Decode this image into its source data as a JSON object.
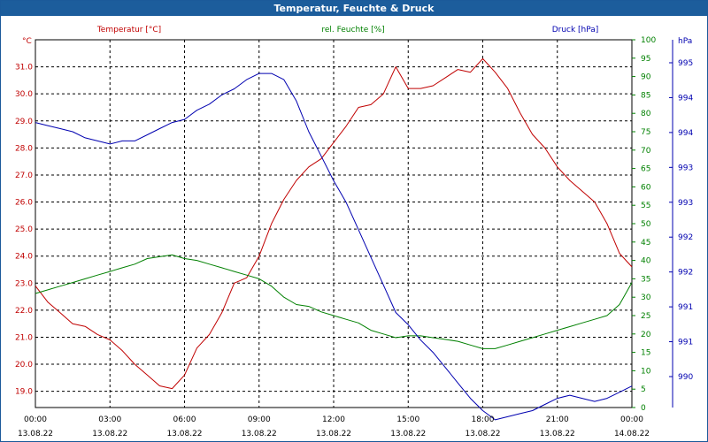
{
  "window_title": "Temperatur, Feuchte & Druck",
  "colors": {
    "titlebar": "#1c5d9c",
    "temperature": "#c00000",
    "humidity": "#008000",
    "pressure": "#0000b0",
    "grid": "#000000"
  },
  "chart_data": {
    "type": "line",
    "title": "Temperatur, Feuchte & Druck",
    "x_ticks": [
      {
        "time": "00:00",
        "date": "13.08.22"
      },
      {
        "time": "03:00",
        "date": "13.08.22"
      },
      {
        "time": "06:00",
        "date": "13.08.22"
      },
      {
        "time": "09:00",
        "date": "13.08.22"
      },
      {
        "time": "12:00",
        "date": "13.08.22"
      },
      {
        "time": "15:00",
        "date": "13.08.22"
      },
      {
        "time": "18:00",
        "date": "13.08.22"
      },
      {
        "time": "21:00",
        "date": "13.08.22"
      },
      {
        "time": "00:00",
        "date": "14.08.22"
      }
    ],
    "x_range_hours": [
      0,
      24
    ],
    "axes": {
      "temperature": {
        "label": "Temperatur [°C]",
        "unit": "°C",
        "range": [
          18.4,
          32.0
        ],
        "ticks": [
          "31.0",
          "30.0",
          "29.0",
          "28.0",
          "27.0",
          "26.0",
          "25.0",
          "24.0",
          "23.0",
          "22.0",
          "21.0",
          "20.0",
          "19.0"
        ]
      },
      "humidity": {
        "label": "rel. Feuchte [%]",
        "unit": "%",
        "range": [
          0,
          100
        ],
        "ticks": [
          "100",
          "95",
          "90",
          "85",
          "80",
          "75",
          "70",
          "65",
          "60",
          "55",
          "50",
          "45",
          "40",
          "35",
          "30",
          "25",
          "20",
          "15",
          "10",
          "5",
          "0"
        ]
      },
      "pressure": {
        "label": "Druck [hPa]",
        "unit": "hPa",
        "range": [
          989.5,
          995.5
        ],
        "ticks": [
          "995",
          "994",
          "994",
          "993",
          "993",
          "992",
          "992",
          "991",
          "991",
          "990"
        ]
      }
    },
    "series": [
      {
        "name": "Temperatur",
        "axis": "temperature",
        "x": [
          0,
          0.5,
          1,
          1.5,
          2,
          2.5,
          3,
          3.5,
          4,
          4.5,
          5,
          5.5,
          6,
          6.5,
          7,
          7.5,
          8,
          8.5,
          9,
          9.5,
          10,
          10.5,
          11,
          11.5,
          12,
          12.5,
          13,
          13.5,
          14,
          14.5,
          15,
          15.5,
          16,
          16.5,
          17,
          17.5,
          18,
          18.5,
          19,
          19.5,
          20,
          20.5,
          21,
          21.5,
          22,
          22.5,
          23,
          23.5,
          24
        ],
        "values": [
          22.9,
          22.3,
          21.9,
          21.5,
          21.4,
          21.1,
          20.9,
          20.5,
          20.0,
          19.6,
          19.2,
          19.1,
          19.6,
          20.6,
          21.1,
          21.9,
          23.0,
          23.2,
          24.0,
          25.2,
          26.1,
          26.8,
          27.3,
          27.6,
          28.2,
          28.8,
          29.5,
          29.6,
          30.0,
          31.0,
          30.2,
          30.2,
          30.3,
          30.6,
          30.9,
          30.8,
          31.3,
          30.8,
          30.2,
          29.3,
          28.5,
          28.0,
          27.3,
          26.8,
          26.4,
          26.0,
          25.2,
          24.1,
          23.6
        ]
      },
      {
        "name": "rel. Feuchte",
        "axis": "humidity",
        "x": [
          0,
          0.5,
          1,
          1.5,
          2,
          2.5,
          3,
          3.5,
          4,
          4.5,
          5,
          5.5,
          6,
          6.5,
          7,
          7.5,
          8,
          8.5,
          9,
          9.5,
          10,
          10.5,
          11,
          11.5,
          12,
          12.5,
          13,
          13.5,
          14,
          14.5,
          15,
          15.5,
          16,
          16.5,
          17,
          17.5,
          18,
          18.5,
          19,
          19.5,
          20,
          20.5,
          21,
          21.5,
          22,
          22.5,
          23,
          23.5,
          24
        ],
        "values": [
          31,
          32,
          33,
          34,
          35,
          36,
          37,
          38,
          39,
          40.5,
          41,
          41.5,
          40.5,
          40,
          39,
          38,
          37,
          36,
          35,
          33,
          30,
          28,
          27.5,
          26,
          25,
          24,
          23,
          21,
          20,
          19,
          19.5,
          19.5,
          19,
          18.5,
          18,
          17,
          16,
          16,
          17,
          18,
          19,
          20,
          21,
          22,
          23,
          24,
          25,
          28,
          34
        ]
      },
      {
        "name": "Druck",
        "axis": "pressure",
        "x": [
          0,
          0.5,
          1,
          1.5,
          2,
          2.5,
          3,
          3.5,
          4,
          4.5,
          5,
          5.5,
          6,
          6.5,
          7,
          7.5,
          8,
          8.5,
          9,
          9.5,
          10,
          10.5,
          11,
          11.5,
          12,
          12.5,
          13,
          13.5,
          14,
          14.5,
          15,
          15.5,
          16,
          16.5,
          17,
          17.5,
          18,
          18.5,
          19,
          19.5,
          20,
          20.5,
          21,
          21.5,
          22,
          22.5,
          23,
          23.5,
          24
        ],
        "values": [
          994.15,
          994.1,
          994.05,
          994.0,
          993.9,
          993.85,
          993.8,
          993.85,
          993.85,
          993.95,
          994.05,
          994.15,
          994.2,
          994.35,
          994.45,
          994.6,
          994.7,
          994.85,
          994.95,
          994.95,
          994.85,
          994.5,
          994.0,
          993.6,
          993.2,
          992.85,
          992.4,
          991.95,
          991.5,
          991.05,
          990.85,
          990.6,
          990.4,
          990.15,
          989.9,
          989.65,
          989.45,
          989.3,
          989.35,
          989.4,
          989.45,
          989.55,
          989.65,
          989.7,
          989.65,
          989.6,
          989.65,
          989.75,
          989.85
        ]
      }
    ]
  }
}
